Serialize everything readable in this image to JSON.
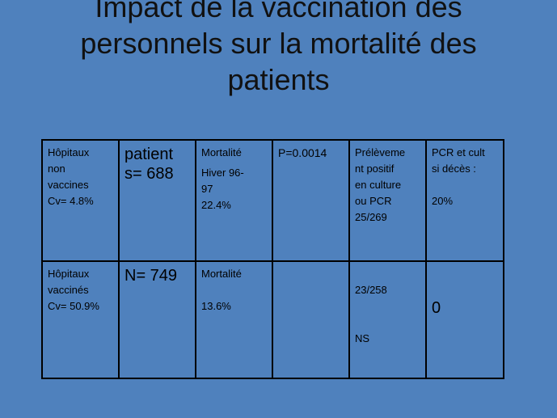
{
  "title": {
    "line1": "Impact de la vaccination des",
    "line2": "personnels sur la mortalité des",
    "line3": "patients"
  },
  "table": {
    "row1": {
      "c1": [
        "Hôpitaux",
        "non",
        "vaccines",
        "Cv= 4.8%"
      ],
      "c2": [
        "patient",
        "s= 688"
      ],
      "c3": [
        "Mortalité",
        "Hiver 96-",
        "97",
        "22.4%"
      ],
      "c4": "P=0.0014",
      "c5": [
        "Prélèveme",
        "nt positif",
        "en culture",
        "ou PCR",
        "25/269"
      ],
      "c6": [
        "PCR et cult",
        "si décès :",
        "20%"
      ]
    },
    "row2": {
      "c1": [
        "Hôpitaux",
        "vaccinés",
        "Cv= 50.9%"
      ],
      "c2": "N= 749",
      "c3": [
        "Mortalité",
        "13.6%"
      ],
      "c4": "",
      "c5": [
        "23/258",
        "NS"
      ],
      "c6": "0"
    }
  }
}
